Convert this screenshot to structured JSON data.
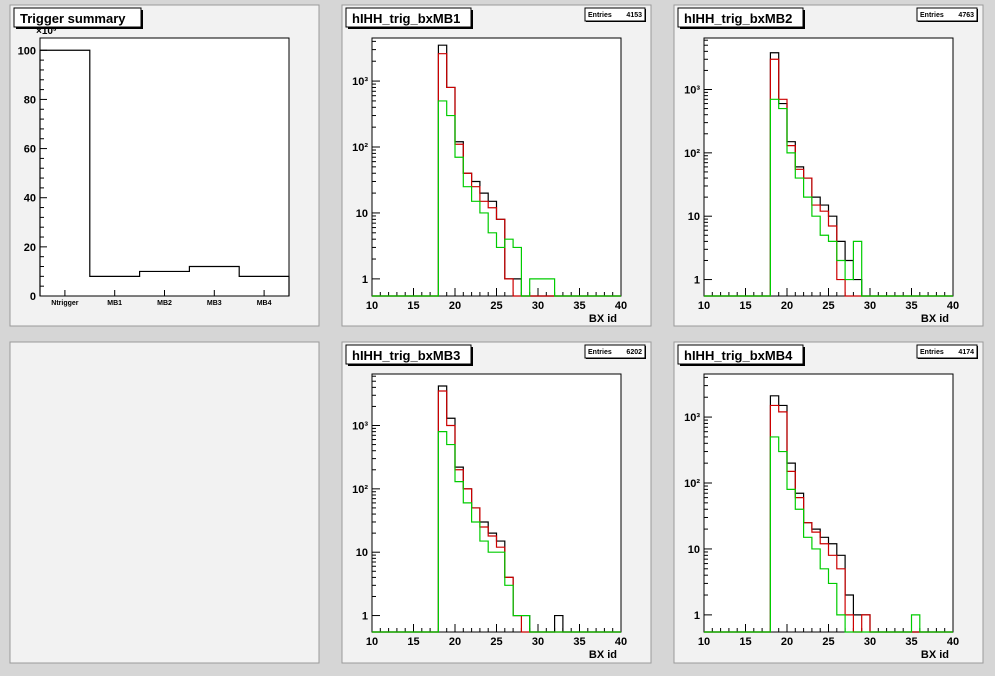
{
  "canvas": {
    "background": "#d6d6d6",
    "pad_fill": "#f2f2f2",
    "frame_fill": "#ffffff"
  },
  "colors": {
    "black": "#000000",
    "red": "#cc0000",
    "green": "#00cc00"
  },
  "chart_data": [
    {
      "type": "bar",
      "title": "Trigger summary",
      "exponent_label": "×10³",
      "categories": [
        "Ntrigger",
        "MB1",
        "MB2",
        "MB3",
        "MB4"
      ],
      "values": [
        100,
        8,
        10,
        12,
        8
      ],
      "ylim": [
        0,
        105
      ],
      "yticks": [
        0,
        20,
        40,
        60,
        80,
        100
      ],
      "grid": false
    },
    {
      "type": "bar",
      "title": "hIHH_trig_bxMB1",
      "stats": {
        "label": "Entries",
        "value": "4153"
      },
      "xlabel": "BX id",
      "xlim": [
        10,
        40
      ],
      "xticks": [
        10,
        15,
        20,
        25,
        30,
        35,
        40
      ],
      "ylog": true,
      "ylim": [
        0.55,
        4500
      ],
      "yticks": [
        {
          "v": 1,
          "label": "1"
        },
        {
          "v": 10,
          "label": "10"
        },
        {
          "v": 100,
          "label": "10²"
        },
        {
          "v": 1000,
          "label": "10³"
        }
      ],
      "bin_width": 1,
      "series": [
        {
          "color": "#000000",
          "values": {
            "18": 3500,
            "19": 800,
            "20": 120,
            "21": 40,
            "22": 30,
            "23": 20,
            "24": 15,
            "25": 8,
            "26": 1,
            "27": 1
          }
        },
        {
          "color": "#cc0000",
          "values": {
            "18": 2600,
            "19": 800,
            "20": 110,
            "21": 40,
            "22": 25,
            "23": 15,
            "24": 12,
            "25": 8,
            "26": 1
          }
        },
        {
          "color": "#00cc00",
          "values": {
            "18": 500,
            "19": 300,
            "20": 70,
            "21": 25,
            "22": 15,
            "23": 10,
            "24": 5,
            "25": 3,
            "26": 4,
            "27": 3,
            "29": 1,
            "30": 1,
            "31": 1
          }
        }
      ]
    },
    {
      "type": "bar",
      "title": "hIHH_trig_bxMB2",
      "stats": {
        "label": "Entries",
        "value": "4763"
      },
      "xlabel": "BX id",
      "xlim": [
        10,
        40
      ],
      "xticks": [
        10,
        15,
        20,
        25,
        30,
        35,
        40
      ],
      "ylog": true,
      "ylim": [
        0.55,
        6500
      ],
      "yticks": [
        {
          "v": 1,
          "label": "1"
        },
        {
          "v": 10,
          "label": "10"
        },
        {
          "v": 100,
          "label": "10²"
        },
        {
          "v": 1000,
          "label": "10³"
        }
      ],
      "bin_width": 1,
      "series": [
        {
          "color": "#000000",
          "values": {
            "18": 3800,
            "19": 600,
            "20": 150,
            "21": 60,
            "22": 40,
            "23": 20,
            "24": 15,
            "25": 10,
            "26": 4,
            "27": 2,
            "28": 1
          }
        },
        {
          "color": "#cc0000",
          "values": {
            "18": 3000,
            "19": 700,
            "20": 130,
            "21": 55,
            "22": 40,
            "23": 15,
            "24": 12,
            "25": 7,
            "26": 1
          }
        },
        {
          "color": "#00cc00",
          "values": {
            "18": 700,
            "19": 500,
            "20": 100,
            "21": 40,
            "22": 20,
            "23": 10,
            "24": 5,
            "25": 4,
            "26": 2,
            "27": 1,
            "28": 4
          }
        }
      ]
    },
    {
      "type": "bar",
      "title": "hIHH_trig_bxMB3",
      "stats": {
        "label": "Entries",
        "value": "6202"
      },
      "xlabel": "BX id",
      "xlim": [
        10,
        40
      ],
      "xticks": [
        10,
        15,
        20,
        25,
        30,
        35,
        40
      ],
      "ylog": true,
      "ylim": [
        0.55,
        6500
      ],
      "yticks": [
        {
          "v": 1,
          "label": "1"
        },
        {
          "v": 10,
          "label": "10"
        },
        {
          "v": 100,
          "label": "10²"
        },
        {
          "v": 1000,
          "label": "10³"
        }
      ],
      "bin_width": 1,
      "series": [
        {
          "color": "#000000",
          "values": {
            "18": 4200,
            "19": 1300,
            "20": 220,
            "21": 100,
            "22": 50,
            "23": 30,
            "24": 20,
            "25": 15,
            "26": 4,
            "27": 1,
            "28": 1,
            "32": 1
          }
        },
        {
          "color": "#cc0000",
          "values": {
            "18": 3500,
            "19": 1000,
            "20": 200,
            "21": 100,
            "22": 50,
            "23": 25,
            "24": 18,
            "25": 12,
            "26": 4,
            "27": 1
          }
        },
        {
          "color": "#00cc00",
          "values": {
            "18": 800,
            "19": 500,
            "20": 130,
            "21": 60,
            "22": 30,
            "23": 15,
            "24": 10,
            "25": 10,
            "26": 3,
            "27": 1,
            "28": 1
          }
        }
      ]
    },
    {
      "type": "bar",
      "title": "hIHH_trig_bxMB4",
      "stats": {
        "label": "Entries",
        "value": "4174"
      },
      "xlabel": "BX id",
      "xlim": [
        10,
        40
      ],
      "xticks": [
        10,
        15,
        20,
        25,
        30,
        35,
        40
      ],
      "ylog": true,
      "ylim": [
        0.55,
        4500
      ],
      "yticks": [
        {
          "v": 1,
          "label": "1"
        },
        {
          "v": 10,
          "label": "10"
        },
        {
          "v": 100,
          "label": "10²"
        },
        {
          "v": 1000,
          "label": "10³"
        }
      ],
      "bin_width": 1,
      "series": [
        {
          "color": "#000000",
          "values": {
            "18": 2100,
            "19": 1500,
            "20": 200,
            "21": 70,
            "22": 25,
            "23": 20,
            "24": 15,
            "25": 12,
            "26": 8,
            "27": 2,
            "28": 1,
            "29": 1
          }
        },
        {
          "color": "#cc0000",
          "values": {
            "18": 1500,
            "19": 1200,
            "20": 150,
            "21": 60,
            "22": 25,
            "23": 18,
            "24": 12,
            "25": 8,
            "26": 5,
            "27": 1,
            "29": 1
          }
        },
        {
          "color": "#00cc00",
          "values": {
            "18": 500,
            "19": 300,
            "20": 80,
            "21": 40,
            "22": 15,
            "23": 10,
            "24": 5,
            "25": 3,
            "26": 1,
            "35": 1
          }
        }
      ]
    }
  ]
}
